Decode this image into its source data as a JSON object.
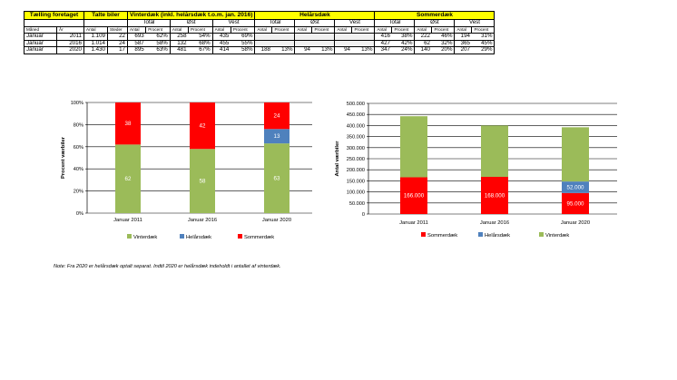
{
  "table": {
    "header_main": [
      "Tælling foretaget",
      "Talte biler",
      "Vinterdæk (inkl. helårsdæk t.o.m. jan. 2016)",
      "Helårsdæk",
      "Sommerdæk"
    ],
    "header_groups": [
      "Total",
      "Øst",
      "Vest",
      "Total",
      "Øst",
      "Vest",
      "Total",
      "Øst",
      "Vest"
    ],
    "header_sub": [
      "Måned",
      "År",
      "Antal",
      "Steder"
    ],
    "header_sub_pair": [
      "Antal",
      "Procent"
    ],
    "rows": [
      {
        "month": "Januar",
        "year": "2011",
        "antal": "1.109",
        "steder": "22",
        "vinter": [
          "693",
          "62%",
          "258",
          "54%",
          "435",
          "69%"
        ],
        "helaar": [
          "",
          "",
          "",
          "",
          "",
          ""
        ],
        "sommer": [
          "416",
          "38%",
          "222",
          "46%",
          "194",
          "31%"
        ]
      },
      {
        "month": "Januar",
        "year": "2016",
        "antal": "1.014",
        "steder": "24",
        "vinter": [
          "587",
          "58%",
          "132",
          "68%",
          "455",
          "55%"
        ],
        "helaar": [
          "",
          "",
          "",
          "",
          "",
          ""
        ],
        "sommer": [
          "427",
          "42%",
          "62",
          "32%",
          "365",
          "45%"
        ]
      },
      {
        "month": "Januar",
        "year": "2020",
        "antal": "1.430",
        "steder": "17",
        "vinter": [
          "895",
          "63%",
          "481",
          "67%",
          "414",
          "58%"
        ],
        "helaar": [
          "188",
          "13%",
          "94",
          "13%",
          "94",
          "13%"
        ],
        "sommer": [
          "347",
          "24%",
          "140",
          "20%",
          "207",
          "29%"
        ]
      }
    ]
  },
  "colors": {
    "vinter": "#9bbb59",
    "helaar": "#4f81bd",
    "sommer": "#ff0000",
    "header": "#ffff00",
    "grid": "#000000"
  },
  "chart_data": [
    {
      "type": "bar",
      "stacked": true,
      "categories": [
        "Januar 2011",
        "Januar 2016",
        "Januar 2020"
      ],
      "series": [
        {
          "name": "Vinterdæk",
          "values": [
            62,
            58,
            63
          ]
        },
        {
          "name": "Helårsdæk",
          "values": [
            0,
            0,
            13
          ]
        },
        {
          "name": "Sommerdæk",
          "values": [
            38,
            42,
            24
          ]
        }
      ],
      "data_labels": {
        "Vinterdæk": [
          "62",
          "58",
          "63"
        ],
        "Helårsdæk": [
          "",
          "",
          "13"
        ],
        "Sommerdæk": [
          "38",
          "42",
          "24"
        ]
      },
      "yticks": [
        "0%",
        "20%",
        "40%",
        "60%",
        "80%",
        "100%"
      ],
      "ylabel": "Procent værbiler",
      "ylim": [
        0,
        100
      ],
      "grid": true,
      "legend_position": "bottom"
    },
    {
      "type": "bar",
      "stacked": true,
      "categories": [
        "Januar 2011",
        "Januar 2016",
        "Januar 2020"
      ],
      "series": [
        {
          "name": "Sommerdæk",
          "values": [
            166000,
            168000,
            95000
          ]
        },
        {
          "name": "Helårsdæk",
          "values": [
            0,
            0,
            52000
          ]
        },
        {
          "name": "Vinterdæk",
          "values": [
            276000,
            232000,
            245000
          ]
        }
      ],
      "data_labels": {
        "Sommerdæk": [
          "166.000",
          "168.000",
          "95.000"
        ],
        "Helårsdæk": [
          "",
          "",
          "52.000"
        ],
        "Vinterdæk": [
          "",
          "",
          ""
        ]
      },
      "yticks": [
        "0",
        "50.000",
        "100.000",
        "150.000",
        "200.000",
        "250.000",
        "300.000",
        "350.000",
        "400.000",
        "450.000",
        "500.000"
      ],
      "ylabel": "Antal værbiler",
      "ylim": [
        0,
        500000
      ],
      "grid": true,
      "legend_position": "bottom"
    }
  ],
  "note": "Note: Fra 2020 er helårsdæk optalt separat. Indtil 2020 er helårsdæk indeholdt i antallet af vinterdæk."
}
